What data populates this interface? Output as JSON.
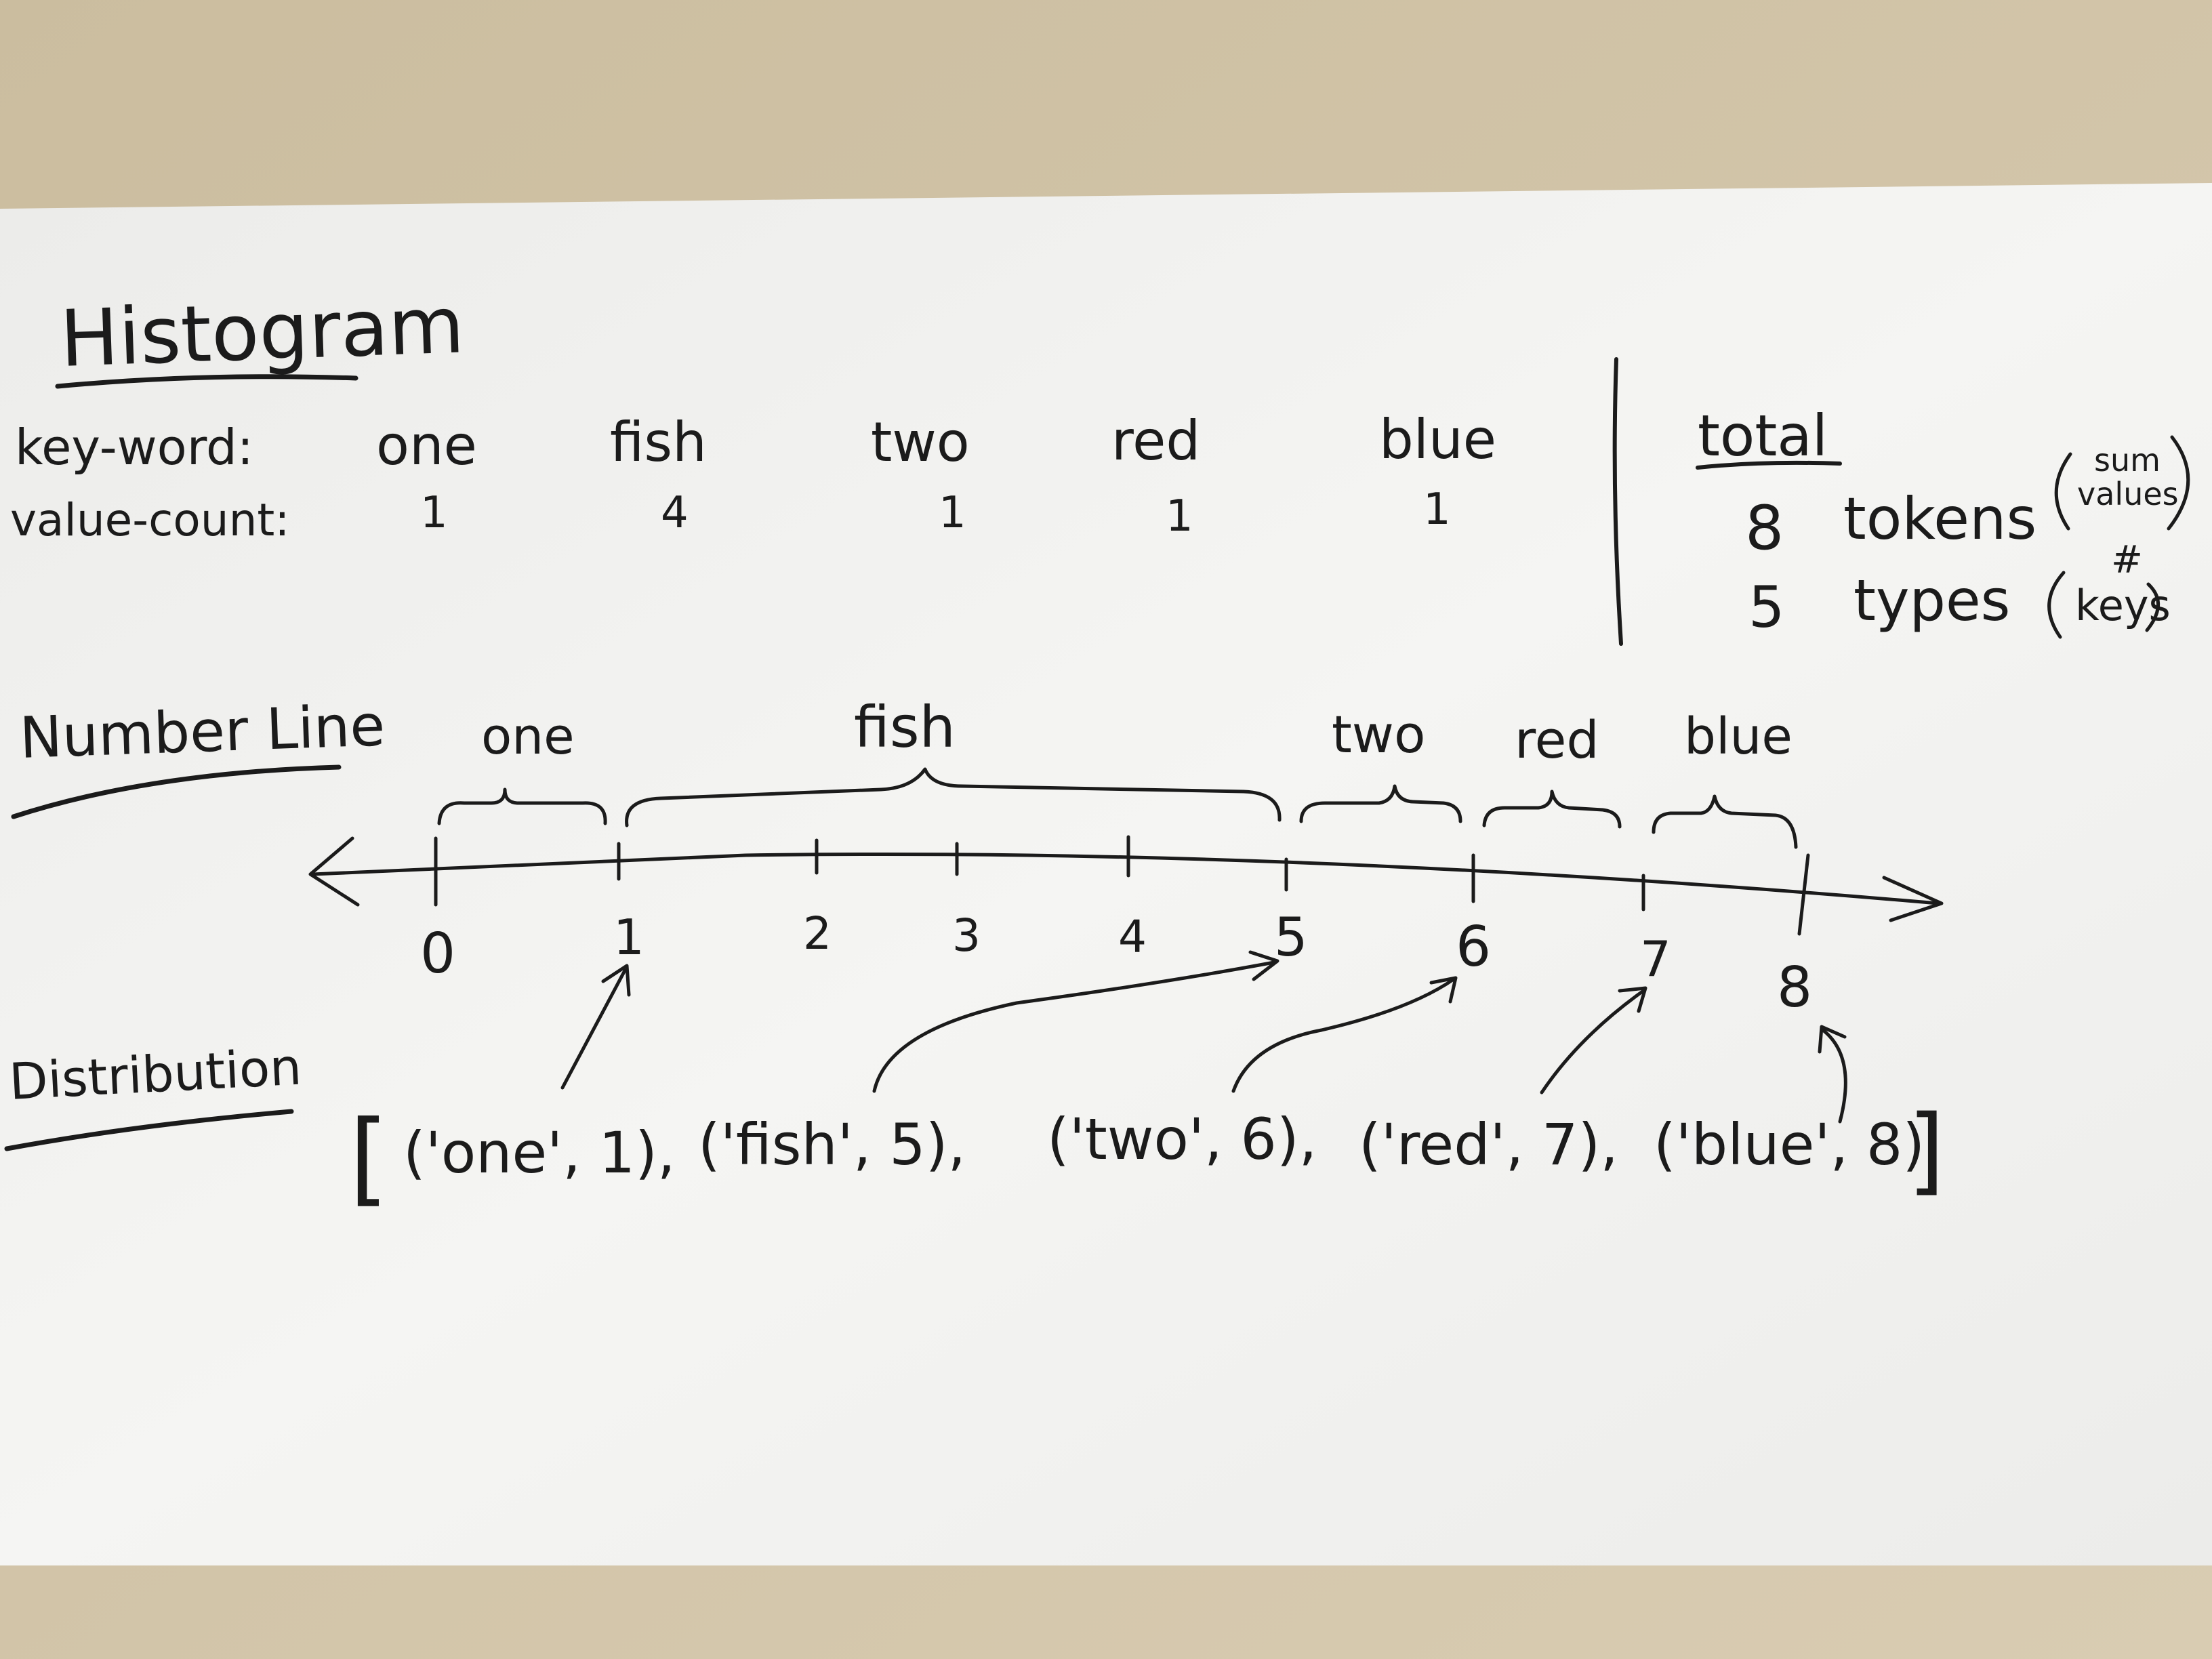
{
  "histogram": {
    "title": "Histogram",
    "key_label": "key-word:",
    "value_label": "value-count:",
    "entries": [
      {
        "word": "one",
        "count": "1"
      },
      {
        "word": "fish",
        "count": "4"
      },
      {
        "word": "two",
        "count": "1"
      },
      {
        "word": "red",
        "count": "1"
      },
      {
        "word": "blue",
        "count": "1"
      }
    ]
  },
  "total": {
    "heading": "total",
    "tokens_value": "8",
    "tokens_label": "tokens",
    "tokens_note_1": "sum",
    "tokens_note_2": "values",
    "types_value": "5",
    "types_label": "types",
    "types_note_1": "#",
    "types_note_2": "keys"
  },
  "number_line": {
    "title": "Number Line",
    "ticks": [
      "0",
      "1",
      "2",
      "3",
      "4",
      "5",
      "6",
      "7",
      "8"
    ],
    "brace_labels": [
      "one",
      "fish",
      "two",
      "red",
      "blue"
    ]
  },
  "distribution": {
    "title": "Distribution",
    "open_bracket": "[",
    "close_bracket": "]",
    "pairs": [
      "('one', 1),",
      "('fish', 5),",
      "('two', 6),",
      "('red', 7),",
      "('blue', 8)"
    ]
  },
  "colors": {
    "paper": "#f4f4f2",
    "ink": "#1b1b1b",
    "desk": "#cdbfa4"
  }
}
